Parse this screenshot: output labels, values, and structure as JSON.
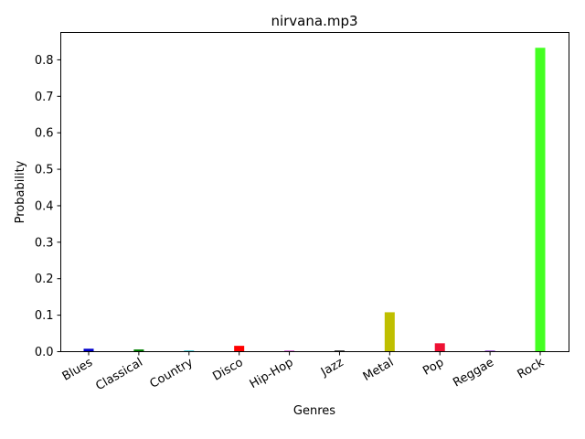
{
  "chart_data": {
    "type": "bar",
    "title": "nirvana.mp3",
    "xlabel": "Genres",
    "ylabel": "Probability",
    "categories": [
      "Blues",
      "Classical",
      "Country",
      "Disco",
      "Hip-Hop",
      "Jazz",
      "Metal",
      "Pop",
      "Reggae",
      "Rock"
    ],
    "values": [
      0.008,
      0.006,
      0.003,
      0.016,
      0.003,
      0.003,
      0.108,
      0.023,
      0.003,
      0.833
    ],
    "colors": [
      "#0000cc",
      "#008000",
      "#17becf",
      "#ff0000",
      "#cc44cc",
      "#000000",
      "#bfbf00",
      "#ee1133",
      "#8833cc",
      "#44ff22"
    ],
    "ylim": [
      0,
      0.875
    ],
    "yticks": [
      0.0,
      0.1,
      0.2,
      0.3,
      0.4,
      0.5,
      0.6,
      0.7,
      0.8
    ],
    "ytick_labels": [
      "0.0",
      "0.1",
      "0.2",
      "0.3",
      "0.4",
      "0.5",
      "0.6",
      "0.7",
      "0.8"
    ],
    "grid": false,
    "legend": "none"
  }
}
